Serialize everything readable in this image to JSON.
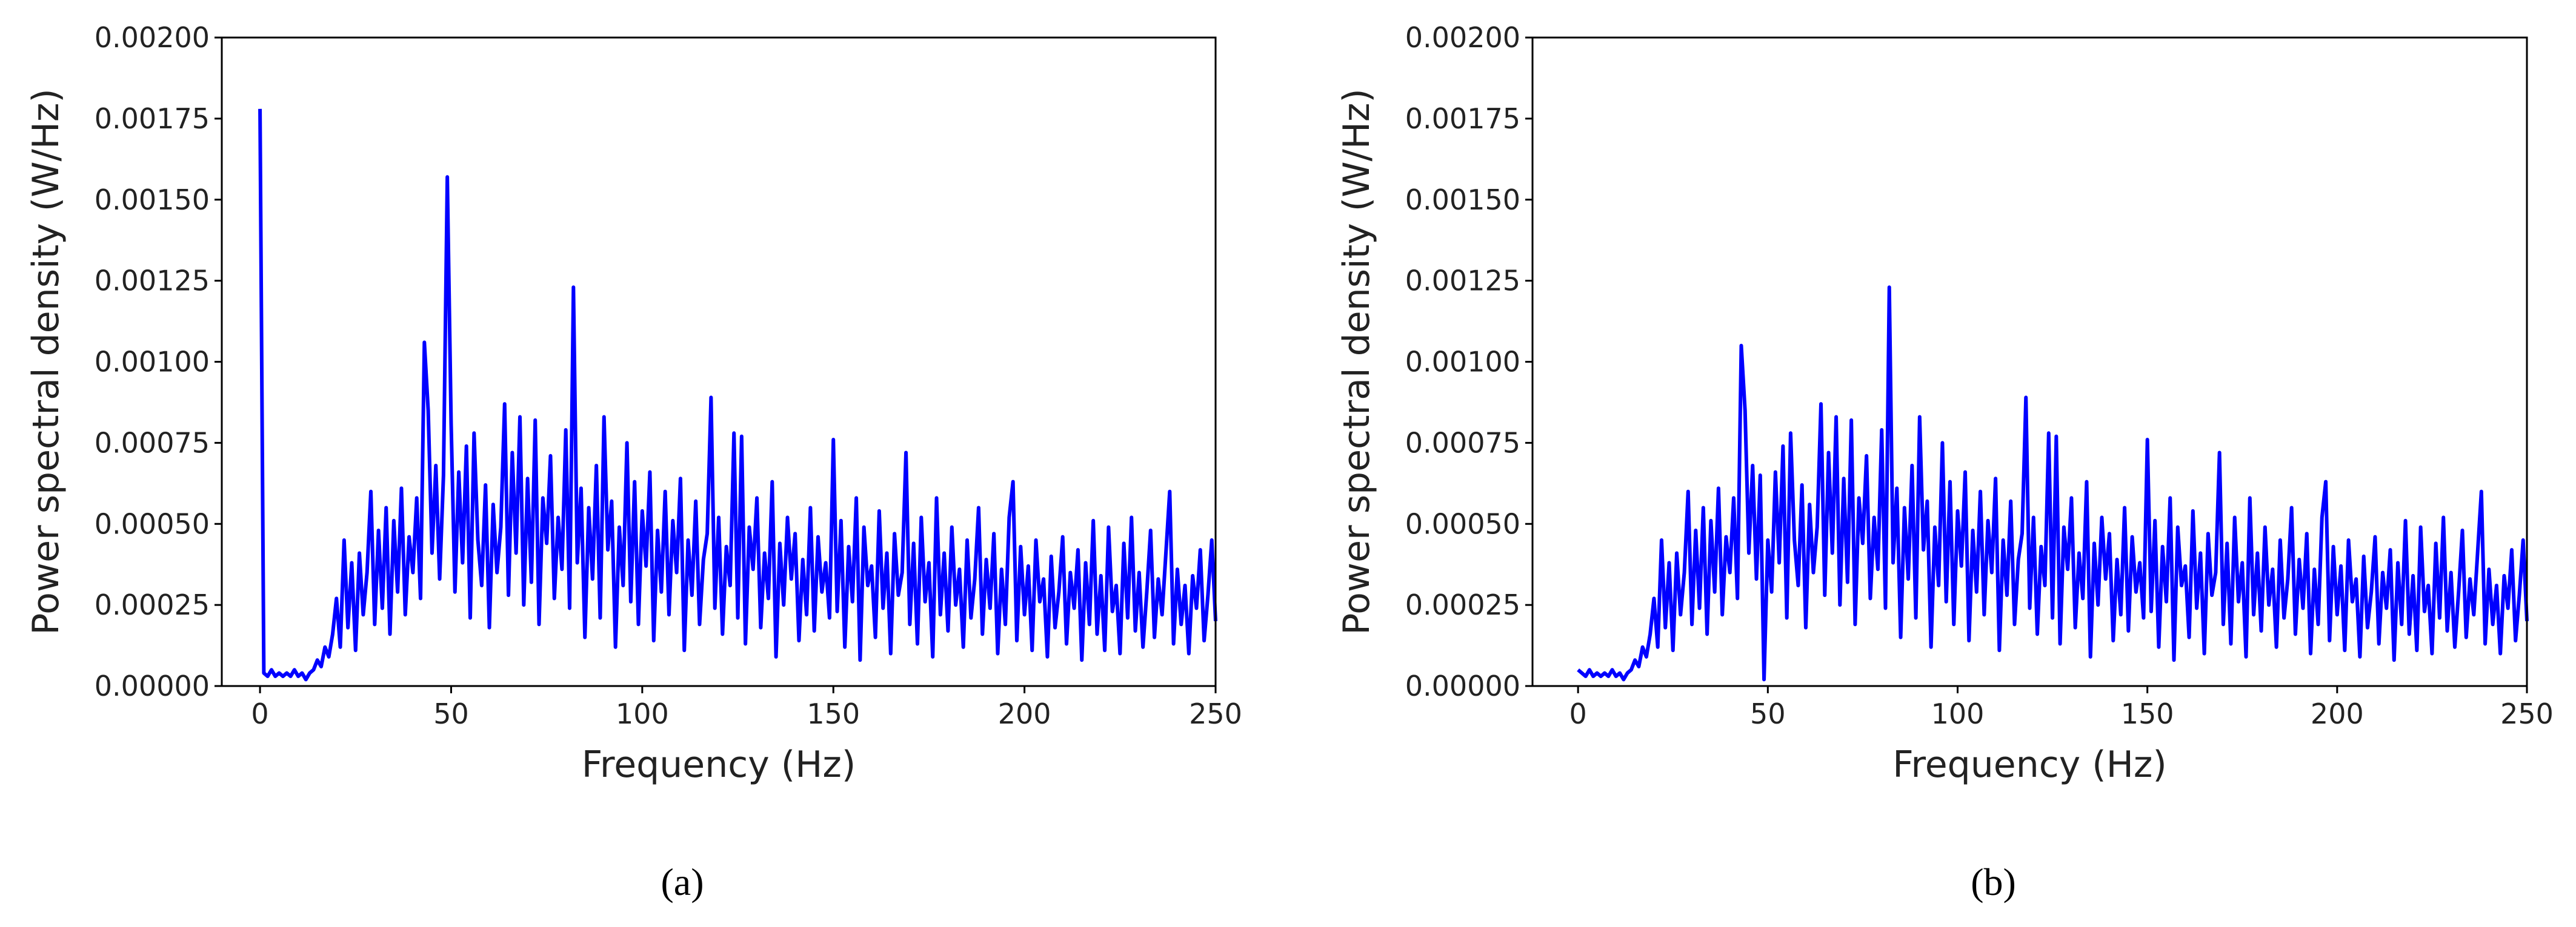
{
  "chart_data": [
    {
      "type": "line",
      "caption": "(a)",
      "xlabel": "Frequency (Hz)",
      "ylabel": "Power spectral density (W/Hz)",
      "color": "#0000ff",
      "xlim": [
        -10,
        250
      ],
      "xticks": [
        0,
        50,
        100,
        150,
        200,
        250
      ],
      "ylim": [
        0,
        0.002
      ],
      "yticks": [
        {
          "value": 0,
          "label": "0.00000"
        },
        0.00025,
        {
          "value": 0.0005,
          "label": "0.00050"
        },
        0.00075,
        {
          "value": 0.001,
          "label": "0.00100"
        },
        0.00125,
        {
          "value": 0.0015,
          "label": "0.00150"
        },
        0.00175,
        {
          "value": 0.002,
          "label": "0.00200"
        }
      ],
      "x": [
        0,
        1,
        2,
        3,
        4,
        5,
        6,
        7,
        8,
        9,
        10,
        11,
        12,
        13,
        14,
        15,
        16,
        17,
        18,
        19,
        20,
        21,
        22,
        23,
        24,
        25,
        26,
        27,
        28,
        29,
        30,
        31,
        32,
        33,
        34,
        35,
        36,
        37,
        38,
        39,
        40,
        41,
        42,
        43,
        44,
        45,
        46,
        47,
        48,
        49,
        50,
        51,
        52,
        53,
        54,
        55,
        56,
        57,
        58,
        59,
        60,
        61,
        62,
        63,
        64,
        65,
        66,
        67,
        68,
        69,
        70,
        71,
        72,
        73,
        74,
        75,
        76,
        77,
        78,
        79,
        80,
        81,
        82,
        83,
        84,
        85,
        86,
        87,
        88,
        89,
        90,
        91,
        92,
        93,
        94,
        95,
        96,
        97,
        98,
        99,
        100,
        101,
        102,
        103,
        104,
        105,
        106,
        107,
        108,
        109,
        110,
        111,
        112,
        113,
        114,
        115,
        116,
        117,
        118,
        119,
        120,
        121,
        122,
        123,
        124,
        125,
        126,
        127,
        128,
        129,
        130,
        131,
        132,
        133,
        134,
        135,
        136,
        137,
        138,
        139,
        140,
        141,
        142,
        143,
        144,
        145,
        146,
        147,
        148,
        149,
        150,
        151,
        152,
        153,
        154,
        155,
        156,
        157,
        158,
        159,
        160,
        161,
        162,
        163,
        164,
        165,
        166,
        167,
        168,
        169,
        170,
        171,
        172,
        173,
        174,
        175,
        176,
        177,
        178,
        179,
        180,
        181,
        182,
        183,
        184,
        185,
        186,
        187,
        188,
        189,
        190,
        191,
        192,
        193,
        194,
        195,
        196,
        197,
        198,
        199,
        200,
        201,
        202,
        203,
        204,
        205,
        206,
        207,
        208,
        209,
        210,
        211,
        212,
        213,
        214,
        215,
        216,
        217,
        218,
        219,
        220,
        221,
        222,
        223,
        224,
        225,
        226,
        227,
        228,
        229,
        230,
        231,
        232,
        233,
        234,
        235,
        236,
        237,
        238,
        239,
        240,
        241,
        242,
        243,
        244,
        245,
        246,
        247,
        248,
        249,
        250
      ],
      "values": [
        0.00178,
        4e-05,
        3e-05,
        5e-05,
        3e-05,
        4e-05,
        3e-05,
        4e-05,
        3e-05,
        5e-05,
        3e-05,
        4e-05,
        2e-05,
        4e-05,
        5e-05,
        8e-05,
        6e-05,
        0.00012,
        9e-05,
        0.00016,
        0.00027,
        0.00012,
        0.00045,
        0.00018,
        0.00038,
        0.00011,
        0.00041,
        0.00022,
        0.00035,
        0.0006,
        0.00019,
        0.00048,
        0.00024,
        0.00055,
        0.00016,
        0.00051,
        0.00029,
        0.00061,
        0.00022,
        0.00046,
        0.00035,
        0.00058,
        0.00027,
        0.00106,
        0.00085,
        0.00041,
        0.00068,
        0.00033,
        0.00065,
        0.00157,
        0.00081,
        0.00029,
        0.00066,
        0.00038,
        0.00074,
        0.00021,
        0.00078,
        0.00045,
        0.00031,
        0.00062,
        0.00018,
        0.00056,
        0.00035,
        0.00049,
        0.00087,
        0.00028,
        0.00072,
        0.00041,
        0.00083,
        0.00025,
        0.00064,
        0.00032,
        0.00082,
        0.00019,
        0.00058,
        0.00044,
        0.00071,
        0.00027,
        0.00052,
        0.00036,
        0.00079,
        0.00024,
        0.00123,
        0.00038,
        0.00061,
        0.00015,
        0.00055,
        0.00033,
        0.00068,
        0.00021,
        0.00083,
        0.00042,
        0.00057,
        0.00012,
        0.00049,
        0.00031,
        0.00075,
        0.00026,
        0.00063,
        0.00019,
        0.00054,
        0.00037,
        0.00066,
        0.00014,
        0.00048,
        0.00029,
        0.0006,
        0.00022,
        0.00051,
        0.00035,
        0.00064,
        0.00011,
        0.00045,
        0.00028,
        0.00057,
        0.00019,
        0.00039,
        0.00047,
        0.00089,
        0.00024,
        0.00052,
        0.00016,
        0.00043,
        0.00031,
        0.00078,
        0.00021,
        0.00077,
        0.00013,
        0.00049,
        0.00036,
        0.00058,
        0.00018,
        0.00041,
        0.00027,
        0.00063,
        9e-05,
        0.00044,
        0.00025,
        0.00052,
        0.00033,
        0.00047,
        0.00014,
        0.00039,
        0.00022,
        0.00055,
        0.00017,
        0.00046,
        0.00029,
        0.00038,
        0.00021,
        0.00076,
        0.00023,
        0.00051,
        0.00012,
        0.00043,
        0.00026,
        0.00058,
        8e-05,
        0.00049,
        0.00031,
        0.00037,
        0.00015,
        0.00054,
        0.00024,
        0.00041,
        0.0001,
        0.00047,
        0.00028,
        0.00035,
        0.00072,
        0.00019,
        0.00044,
        0.00013,
        0.00052,
        0.00026,
        0.00038,
        9e-05,
        0.00058,
        0.00022,
        0.00041,
        0.00017,
        0.00049,
        0.00025,
        0.00036,
        0.00012,
        0.00045,
        0.00021,
        0.00033,
        0.00055,
        0.00016,
        0.00039,
        0.00024,
        0.00047,
        0.0001,
        0.00036,
        0.00019,
        0.00052,
        0.00063,
        0.00014,
        0.00043,
        0.00022,
        0.00037,
        0.00011,
        0.00045,
        0.00026,
        0.00033,
        9e-05,
        0.0004,
        0.00018,
        0.00029,
        0.00046,
        0.00013,
        0.00035,
        0.00024,
        0.00042,
        8e-05,
        0.00038,
        0.00019,
        0.00051,
        0.00016,
        0.00034,
        0.00011,
        0.00049,
        0.00023,
        0.00031,
        0.0001,
        0.00044,
        0.00021,
        0.00052,
        0.00017,
        0.00035,
        0.00012,
        0.00029,
        0.00048,
        0.00015,
        0.00033,
        0.00022,
        0.00041,
        0.0006,
        0.00013,
        0.00036,
        0.00019,
        0.00031,
        0.0001,
        0.00034,
        0.00024,
        0.00042,
        0.00014,
        0.00028,
        0.00045,
        0.0002
      ]
    },
    {
      "type": "line",
      "caption": "(b)",
      "xlabel": "Frequency (Hz)",
      "ylabel": "Power spectral density (W/Hz)",
      "color": "#0000ff",
      "xlim": [
        -12,
        250
      ],
      "xticks": [
        0,
        50,
        100,
        150,
        200,
        250
      ],
      "ylim": [
        0,
        0.002
      ],
      "yticks": [
        {
          "value": 0,
          "label": "0.00000"
        },
        0.00025,
        {
          "value": 0.0005,
          "label": "0.00050"
        },
        0.00075,
        {
          "value": 0.001,
          "label": "0.00100"
        },
        0.00125,
        {
          "value": 0.0015,
          "label": "0.00150"
        },
        0.00175,
        {
          "value": 0.002,
          "label": "0.00200"
        }
      ],
      "x": [
        0,
        1,
        2,
        3,
        4,
        5,
        6,
        7,
        8,
        9,
        10,
        11,
        12,
        13,
        14,
        15,
        16,
        17,
        18,
        19,
        20,
        21,
        22,
        23,
        24,
        25,
        26,
        27,
        28,
        29,
        30,
        31,
        32,
        33,
        34,
        35,
        36,
        37,
        38,
        39,
        40,
        41,
        42,
        43,
        44,
        45,
        46,
        47,
        48,
        49,
        50,
        51,
        52,
        53,
        54,
        55,
        56,
        57,
        58,
        59,
        60,
        61,
        62,
        63,
        64,
        65,
        66,
        67,
        68,
        69,
        70,
        71,
        72,
        73,
        74,
        75,
        76,
        77,
        78,
        79,
        80,
        81,
        82,
        83,
        84,
        85,
        86,
        87,
        88,
        89,
        90,
        91,
        92,
        93,
        94,
        95,
        96,
        97,
        98,
        99,
        100,
        101,
        102,
        103,
        104,
        105,
        106,
        107,
        108,
        109,
        110,
        111,
        112,
        113,
        114,
        115,
        116,
        117,
        118,
        119,
        120,
        121,
        122,
        123,
        124,
        125,
        126,
        127,
        128,
        129,
        130,
        131,
        132,
        133,
        134,
        135,
        136,
        137,
        138,
        139,
        140,
        141,
        142,
        143,
        144,
        145,
        146,
        147,
        148,
        149,
        150,
        151,
        152,
        153,
        154,
        155,
        156,
        157,
        158,
        159,
        160,
        161,
        162,
        163,
        164,
        165,
        166,
        167,
        168,
        169,
        170,
        171,
        172,
        173,
        174,
        175,
        176,
        177,
        178,
        179,
        180,
        181,
        182,
        183,
        184,
        185,
        186,
        187,
        188,
        189,
        190,
        191,
        192,
        193,
        194,
        195,
        196,
        197,
        198,
        199,
        200,
        201,
        202,
        203,
        204,
        205,
        206,
        207,
        208,
        209,
        210,
        211,
        212,
        213,
        214,
        215,
        216,
        217,
        218,
        219,
        220,
        221,
        222,
        223,
        224,
        225,
        226,
        227,
        228,
        229,
        230,
        231,
        232,
        233,
        234,
        235,
        236,
        237,
        238,
        239,
        240,
        241,
        242,
        243,
        244,
        245,
        246,
        247,
        248,
        249,
        250
      ],
      "values": [
        5e-05,
        4e-05,
        3e-05,
        5e-05,
        3e-05,
        4e-05,
        3e-05,
        4e-05,
        3e-05,
        5e-05,
        3e-05,
        4e-05,
        2e-05,
        4e-05,
        5e-05,
        8e-05,
        6e-05,
        0.00012,
        9e-05,
        0.00016,
        0.00027,
        0.00012,
        0.00045,
        0.00018,
        0.00038,
        0.00011,
        0.00041,
        0.00022,
        0.00035,
        0.0006,
        0.00019,
        0.00048,
        0.00024,
        0.00055,
        0.00016,
        0.00051,
        0.00029,
        0.00061,
        0.00022,
        0.00046,
        0.00035,
        0.00058,
        0.00027,
        0.00105,
        0.00085,
        0.00041,
        0.00068,
        0.00033,
        0.00065,
        2e-05,
        0.00045,
        0.00029,
        0.00066,
        0.00038,
        0.00074,
        0.00021,
        0.00078,
        0.00045,
        0.00031,
        0.00062,
        0.00018,
        0.00056,
        0.00035,
        0.00049,
        0.00087,
        0.00028,
        0.00072,
        0.00041,
        0.00083,
        0.00025,
        0.00064,
        0.00032,
        0.00082,
        0.00019,
        0.00058,
        0.00044,
        0.00071,
        0.00027,
        0.00052,
        0.00036,
        0.00079,
        0.00024,
        0.00123,
        0.00038,
        0.00061,
        0.00015,
        0.00055,
        0.00033,
        0.00068,
        0.00021,
        0.00083,
        0.00042,
        0.00057,
        0.00012,
        0.00049,
        0.00031,
        0.00075,
        0.00026,
        0.00063,
        0.00019,
        0.00054,
        0.00037,
        0.00066,
        0.00014,
        0.00048,
        0.00029,
        0.0006,
        0.00022,
        0.00051,
        0.00035,
        0.00064,
        0.00011,
        0.00045,
        0.00028,
        0.00057,
        0.00019,
        0.00039,
        0.00047,
        0.00089,
        0.00024,
        0.00052,
        0.00016,
        0.00043,
        0.00031,
        0.00078,
        0.00021,
        0.00077,
        0.00013,
        0.00049,
        0.00036,
        0.00058,
        0.00018,
        0.00041,
        0.00027,
        0.00063,
        9e-05,
        0.00044,
        0.00025,
        0.00052,
        0.00033,
        0.00047,
        0.00014,
        0.00039,
        0.00022,
        0.00055,
        0.00017,
        0.00046,
        0.00029,
        0.00038,
        0.00021,
        0.00076,
        0.00023,
        0.00051,
        0.00012,
        0.00043,
        0.00026,
        0.00058,
        8e-05,
        0.00049,
        0.00031,
        0.00037,
        0.00015,
        0.00054,
        0.00024,
        0.00041,
        0.0001,
        0.00047,
        0.00028,
        0.00035,
        0.00072,
        0.00019,
        0.00044,
        0.00013,
        0.00052,
        0.00026,
        0.00038,
        9e-05,
        0.00058,
        0.00022,
        0.00041,
        0.00017,
        0.00049,
        0.00025,
        0.00036,
        0.00012,
        0.00045,
        0.00021,
        0.00033,
        0.00055,
        0.00016,
        0.00039,
        0.00024,
        0.00047,
        0.0001,
        0.00036,
        0.00019,
        0.00052,
        0.00063,
        0.00014,
        0.00043,
        0.00022,
        0.00037,
        0.00011,
        0.00045,
        0.00026,
        0.00033,
        9e-05,
        0.0004,
        0.00018,
        0.00029,
        0.00046,
        0.00013,
        0.00035,
        0.00024,
        0.00042,
        8e-05,
        0.00038,
        0.00019,
        0.00051,
        0.00016,
        0.00034,
        0.00011,
        0.00049,
        0.00023,
        0.00031,
        0.0001,
        0.00044,
        0.00021,
        0.00052,
        0.00017,
        0.00035,
        0.00012,
        0.00029,
        0.00048,
        0.00015,
        0.00033,
        0.00022,
        0.00041,
        0.0006,
        0.00013,
        0.00036,
        0.00019,
        0.00031,
        0.0001,
        0.00034,
        0.00024,
        0.00042,
        0.00014,
        0.00028,
        0.00045,
        0.0002
      ]
    }
  ]
}
